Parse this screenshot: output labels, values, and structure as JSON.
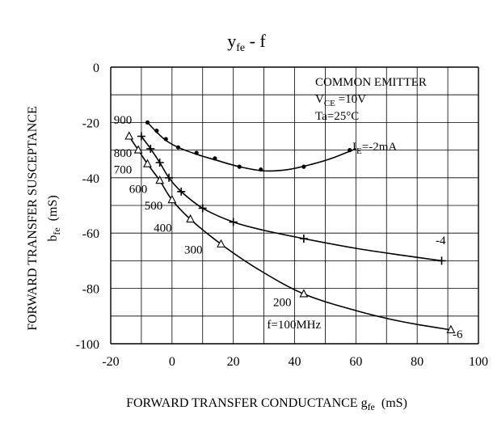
{
  "chart_data": {
    "type": "line",
    "title": {
      "main": "y",
      "sub": "fe",
      "rest": " - f"
    },
    "xlabel": {
      "main": "FORWARD TRANSFER CONDUCTANCE g",
      "sub": "fe",
      "unit": "(mS)"
    },
    "ylabel": {
      "line1": "FORWARD TRANSFER SUSCEPTANCE",
      "line2_main": "b",
      "line2_sub": "fe",
      "line2_unit": "(mS)"
    },
    "xlim": [
      -20,
      100
    ],
    "ylim": [
      -100,
      0
    ],
    "xticks": [
      -20,
      0,
      20,
      40,
      60,
      80,
      100
    ],
    "yticks": [
      0,
      -20,
      -40,
      -60,
      -80,
      -100
    ],
    "grid": true,
    "conditions": {
      "line1": "COMMON EMITTER",
      "line2_main": "V",
      "line2_sub": "CE",
      "line2_rest": " =10V",
      "line3": "Ta=25°C"
    },
    "series": [
      {
        "marker": "dot",
        "points": [
          [
            -8,
            -20
          ],
          [
            -5,
            -23
          ],
          [
            -2,
            -26
          ],
          [
            2,
            -29
          ],
          [
            8,
            -31
          ],
          [
            14,
            -33
          ],
          [
            22,
            -36
          ],
          [
            29,
            -37
          ],
          [
            43,
            -36
          ],
          [
            58,
            -30
          ]
        ],
        "curve": [
          [
            -8,
            -20
          ],
          [
            -5,
            -23.5
          ],
          [
            -2,
            -26.5
          ],
          [
            2,
            -29
          ],
          [
            8,
            -31.5
          ],
          [
            14,
            -33.5
          ],
          [
            22,
            -36
          ],
          [
            30,
            -37.5
          ],
          [
            38,
            -37
          ],
          [
            46,
            -35
          ],
          [
            52,
            -33
          ],
          [
            60,
            -29.5
          ]
        ],
        "label_main": "I",
        "label_sub": "E",
        "label_rest": "=-2mA"
      },
      {
        "marker": "plus",
        "points": [
          [
            -10,
            -25
          ],
          [
            -7,
            -29.5
          ],
          [
            -4,
            -34.5
          ],
          [
            -1,
            -40
          ],
          [
            3,
            -45
          ],
          [
            10,
            -51
          ],
          [
            20,
            -56
          ],
          [
            43,
            -62
          ],
          [
            88,
            -70
          ]
        ],
        "curve": [
          [
            -10,
            -25
          ],
          [
            -7,
            -29.5
          ],
          [
            -4,
            -34.5
          ],
          [
            -1,
            -40
          ],
          [
            3,
            -45
          ],
          [
            10,
            -51
          ],
          [
            20,
            -56
          ],
          [
            30,
            -59
          ],
          [
            43,
            -62
          ],
          [
            60,
            -65.5
          ],
          [
            75,
            -68
          ],
          [
            88,
            -70
          ]
        ],
        "label": "-4"
      },
      {
        "marker": "triangle",
        "points": [
          [
            -14,
            -25
          ],
          [
            -11,
            -30
          ],
          [
            -8,
            -35
          ],
          [
            -4,
            -41
          ],
          [
            0,
            -48
          ],
          [
            6,
            -55
          ],
          [
            16,
            -64
          ],
          [
            43,
            -82
          ],
          [
            91,
            -95
          ]
        ],
        "curve": [
          [
            -14,
            -25
          ],
          [
            -11,
            -30
          ],
          [
            -8,
            -35
          ],
          [
            -4,
            -41
          ],
          [
            0,
            -48
          ],
          [
            6,
            -55
          ],
          [
            16,
            -64
          ],
          [
            28,
            -73
          ],
          [
            43,
            -82
          ],
          [
            60,
            -88
          ],
          [
            75,
            -92
          ],
          [
            91,
            -95
          ]
        ],
        "label": "-6"
      }
    ],
    "frequency_labels": [
      {
        "text": "900",
        "x": -19,
        "y": -19
      },
      {
        "text": "800",
        "x": -19,
        "y": -31
      },
      {
        "text": "700",
        "x": -19,
        "y": -37
      },
      {
        "text": "600",
        "x": -14,
        "y": -44
      },
      {
        "text": "500",
        "x": -9,
        "y": -50
      },
      {
        "text": "400",
        "x": -6,
        "y": -58
      },
      {
        "text": "300",
        "x": 4,
        "y": -66
      },
      {
        "text": "200",
        "x": 33,
        "y": -85
      },
      {
        "text": "f=100MHz",
        "x": 31,
        "y": -93
      }
    ]
  }
}
